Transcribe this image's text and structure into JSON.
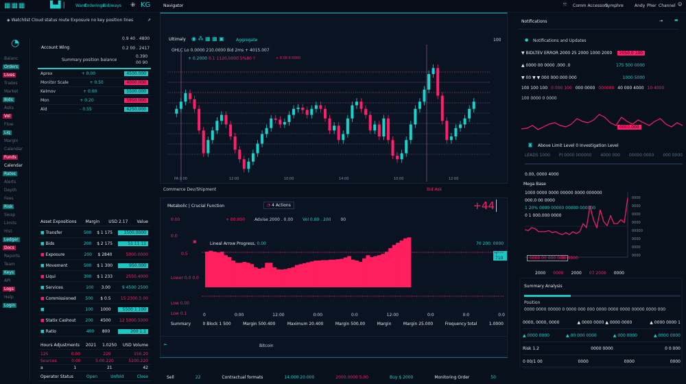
{
  "topbar": {
    "logo": "▦",
    "nav": [
      "Ward",
      "Orderings",
      "Bid/ways"
    ],
    "brand": "KG",
    "title": "Navigator",
    "right": [
      "Comm Accessors",
      "Symphre",
      "Andy",
      "Pher",
      "Channel"
    ]
  },
  "left": {
    "banner": "Watchlist Cloud status route Exposure no key position lines",
    "account": "Account Wing",
    "summary_label": "Summary position balance",
    "quotes": [
      "0.9 40 . 4800",
      "0.2 00 . 2417",
      "0.390",
      "00 90"
    ],
    "mini_rows": [
      [
        "Aprex",
        "+ 0.00",
        "4500.000"
      ],
      [
        "Monitor Scale",
        "+ 0.50",
        "4000.000"
      ],
      [
        "Kelmov",
        "+ 0.00",
        "5500.000"
      ],
      [
        "Mon",
        "+ 0.20",
        "5950.000"
      ],
      [
        "Ald",
        "- 0.55",
        "4250.000"
      ]
    ],
    "side_items": [
      "Balanc",
      "Orders",
      "Lives",
      "Trades",
      "Market",
      "Bids",
      "Asks",
      "Vol",
      "Flow",
      "Liq",
      "Margin",
      "Calendar",
      "Funds",
      "Rates",
      "Alerts",
      "Depth",
      "Fees",
      "Risk",
      "Swap",
      "Limits",
      "Hist",
      "Ledger",
      "Docs",
      "Reports",
      "Team",
      "Keys",
      "API",
      "Logs",
      "Help",
      "Login"
    ],
    "section_label": "Calendar",
    "positions_header": [
      "Asset Expositions",
      "Margin",
      "USD 2.17",
      "Value"
    ],
    "positions": [
      {
        "name": "Transfer",
        "margin": "500",
        "qty": "$ 1 175",
        "value": "3500.0000",
        "style": "cy"
      },
      {
        "name": "Bids",
        "margin": "200",
        "qty": "$ 2 175",
        "value": "51 11 11",
        "style": "cy"
      },
      {
        "name": "Exposure",
        "margin": "200",
        "qty": "$ 2840",
        "value": "5000.0000",
        "style": "pk"
      },
      {
        "name": "Movement",
        "margin": "500",
        "qty": "$ 1 300",
        "value": "950.000",
        "style": "cy"
      },
      {
        "name": "Liqui",
        "margin": "300",
        "qty": "$ 1 233",
        "value": "2550.4000",
        "style": "pk"
      },
      {
        "name": "Services",
        "margin": "100",
        "qty": "3.00",
        "value": "9 4500 2500",
        "style": "cy-text"
      },
      {
        "name": "Commissioned",
        "margin": "500",
        "qty": "$ 0.5",
        "value": "15 2300.5 00",
        "style": "pk"
      },
      {
        "name": "",
        "margin": "100",
        "qty": "1000",
        "value": "5500 1 100",
        "style": "cy"
      },
      {
        "name": "Statix Cashout",
        "margin": "200",
        "qty": "4500",
        "value": "12 5000.5000",
        "style": "pk"
      },
      {
        "name": "Ratio",
        "margin": "400",
        "qty": "800",
        "value": "200 1.1",
        "style": "cy"
      }
    ],
    "footer_header": [
      "Hours Adjustments",
      "2021",
      "1.0250",
      "USD Volume"
    ],
    "footer_rows": [
      [
        "125",
        "0.00",
        "220",
        "150.20"
      ],
      [
        "Sources",
        "0.00",
        "5.00.220",
        "5100.220"
      ],
      [
        "a",
        "1",
        "21",
        "42"
      ]
    ],
    "footer_last": [
      "Operator Status",
      "Open",
      "Unfold",
      "Close"
    ]
  },
  "center": {
    "chart_title": "Ultimaly",
    "chart_tabs": [
      "Live",
      "Aggregate"
    ],
    "chart_info": "OHLC Lo 0.0000 210.0000 Bid 2ms + 4015.007",
    "price_tag": "+ 0.2000",
    "chg": "0.1 1120,0000 5%80 ?",
    "pink_note": "+ 0.00 0.0000",
    "y_label": "100",
    "x_ticks": [
      "PA 0:00",
      "12:00",
      "10:00",
      "14:00",
      "10:00",
      "12:00"
    ],
    "footer_left": "Commerce  Dev/Shipment",
    "footer_right": "Bid Ask",
    "candles": [
      55,
      61,
      68,
      63,
      55,
      37,
      18,
      29,
      37,
      45,
      50,
      42,
      32,
      21,
      13,
      5,
      11,
      18,
      26,
      34,
      39,
      47,
      46,
      42,
      44,
      50,
      55,
      56,
      54,
      50,
      55,
      58,
      55,
      47,
      37,
      41,
      29,
      34,
      47,
      58,
      61,
      55,
      50,
      37,
      42,
      32,
      47,
      29,
      16,
      13,
      18,
      29,
      42,
      55,
      61,
      71,
      84,
      89,
      66,
      45,
      29,
      32,
      39,
      42,
      47,
      55,
      61
    ],
    "vol_title": "Metabolic | Crucial Function",
    "vol_badge": "4 Actions",
    "big_number": "+44",
    "legend": [
      "+ 00.000",
      "Advise 2000 . 0.00",
      "Vol 0.00 . 200",
      "00"
    ],
    "vol_axis": [
      "0.00",
      "0.0",
      "0.5",
      "Lower 0.0 0.0",
      "Low  0.00",
      "Low 0.1"
    ],
    "inner_label": "Lineal Arrow Progress",
    "inner_value": "0.00",
    "right_label": "70 200. 0000",
    "right_tag": "√ 710",
    "area": [
      80,
      82,
      80,
      78,
      80,
      72,
      68,
      60,
      55,
      55,
      57,
      55,
      52,
      45,
      42,
      44,
      55,
      55,
      45,
      40,
      40,
      41,
      43,
      45,
      50,
      52,
      54,
      56,
      58,
      60,
      60,
      61,
      61,
      62,
      62,
      63,
      64,
      67,
      70,
      62,
      60,
      57,
      65,
      72,
      68,
      70,
      72,
      75,
      80,
      88,
      95,
      100,
      105,
      110,
      112
    ],
    "vol_x": [
      "0",
      "0:00",
      "12:00",
      "0:00",
      "0:0",
      "12:00",
      "0:0",
      "0:0",
      "0:0"
    ],
    "stats": [
      "Summary",
      "0 Block 1 500",
      "Margin 500.400",
      "Maximum 20.400",
      "Margin 500.00",
      "Margin",
      "Margin 25.000",
      "Frequency total",
      "1.0000"
    ],
    "bottom_title": "Bitcoin",
    "bottom_row": [
      "Sell",
      "22",
      "Contractual formats",
      "14.000 20.000",
      "2000.0000 5.00",
      "Buy $ 2000",
      "Monitoring Order",
      "50"
    ]
  },
  "right": {
    "title": "Notifications",
    "first": "Notifications and Updates",
    "alerts": [
      {
        "text": "▼ BIDLTEV ERROR 2000 25 2000 1000 2000",
        "val": "2050.0 100",
        "style": "pk"
      },
      {
        "text": "▲ 0000 00 0000 .000 .0",
        "val": "175 500 0000",
        "style": "cy"
      },
      {
        "text": "▼ 00 ▼ ▼ 000 000 000 000",
        "val": "1000 5000",
        "style": "cy"
      }
    ],
    "ticker": [
      "100 100 100",
      "0 000 100",
      "000 0000",
      "000000",
      "40 000 4000",
      "10 4000"
    ],
    "sub_tick": "100 0000 0 0000",
    "spark": [
      45,
      44,
      40,
      46,
      42,
      38,
      36,
      40,
      42,
      38,
      30,
      34,
      36,
      32,
      24,
      28,
      36,
      40,
      28,
      34,
      38,
      32,
      36,
      40,
      34,
      30,
      38,
      42,
      36,
      40
    ],
    "spark_tag": "0000.000",
    "spark_tag2": "00 000 000",
    "sub_title": "Above Limit Level 0 Investigation Level",
    "tabs": [
      "LEADS 1000",
      "PI 0000 000000",
      "4000 000",
      "00000 0000",
      "000 0000"
    ],
    "market_label": "0.00, 0000 4000",
    "mega": "Mega Base",
    "line_legend": [
      "1000 0000 0000 00000 0000 000000",
      "000.0 00 0000",
      "1 20% 0000 00000 00000 000000",
      "0 1 000.000 0000"
    ],
    "line": [
      38,
      37,
      40,
      39,
      36,
      36,
      36,
      37,
      35,
      36,
      34,
      33,
      35,
      33,
      36,
      34,
      36,
      44,
      40,
      62,
      48,
      40,
      58,
      46,
      42,
      52,
      44,
      44,
      48,
      45,
      70
    ],
    "line_axis": [
      "0000",
      "0000",
      "0000",
      "0000",
      "00000",
      "0000",
      "0000",
      "0000"
    ],
    "line_x": [
      "2000",
      "0000",
      "2000",
      "07 2000",
      "0000"
    ],
    "line_box": "0000 00 000 000",
    "line_box2": "00 0000",
    "bottom_title": "Summary Analysis",
    "progress": 0.3,
    "bottom_sub": "Position",
    "bottom_line": "0000 0000 00000 0 0000 000 000 0000 0000 0000 00000 0000 000",
    "table": [
      [
        "0000, 0000, 0000",
        "▲ 0000 0000 ▲ 0000 0000",
        "▲ 0000 0000 1"
      ],
      [
        "▲ 0000 0000",
        "▲ 00 000 0000",
        "▲ 000 0000",
        "▲ 0000 0000"
      ],
      [
        "Risk 1.2",
        "0000 0000",
        "0 0 000"
      ],
      [
        "0 00/1 00",
        "0000",
        "0000",
        "0000"
      ]
    ]
  }
}
